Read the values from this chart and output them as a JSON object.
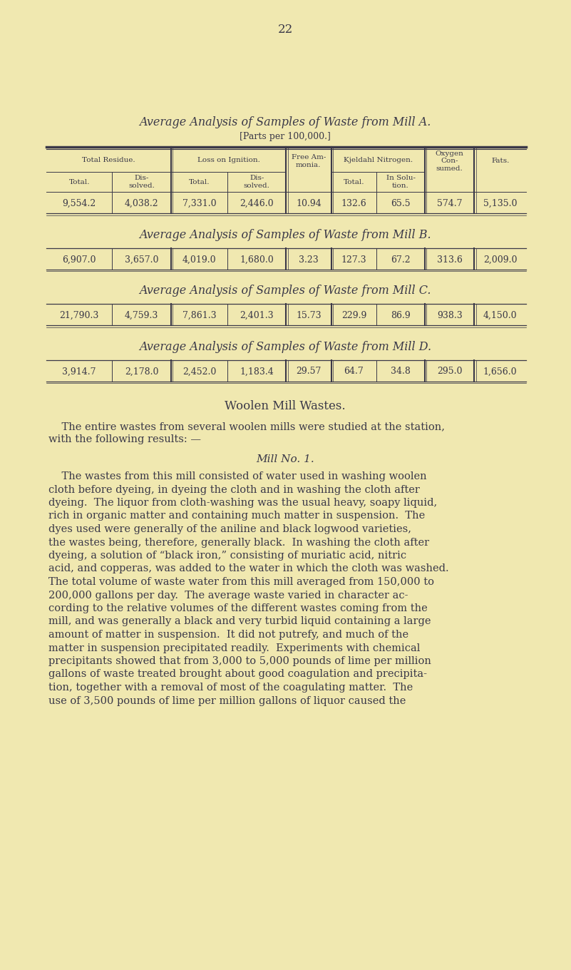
{
  "bg_color": "#f0e8b0",
  "text_color": "#3a3848",
  "page_number": "22",
  "table_title_A": "Average Analysis of Samples of Waste from Mill A.",
  "table_subtitle": "[Parts per 100,000.]",
  "table_title_B": "Average Analysis of Samples of Waste from Mill B.",
  "table_title_C": "Average Analysis of Samples of Waste from Mill C.",
  "table_title_D": "Average Analysis of Samples of Waste from Mill D.",
  "data_A": [
    "9,554.2",
    "4,038.2",
    "7,331.0",
    "2,446.0",
    "10.94",
    "132.6",
    "65.5",
    "574.7",
    "5,135.0"
  ],
  "data_B": [
    "6,907.0",
    "3,657.0",
    "4,019.0",
    "1,680.0",
    "3.23",
    "127.3",
    "67.2",
    "313.6",
    "2,009.0"
  ],
  "data_C": [
    "21,790.3",
    "4,759.3",
    "7,861.3",
    "2,401.3",
    "15.73",
    "229.9",
    "86.9",
    "938.3",
    "4,150.0"
  ],
  "data_D": [
    "3,914.7",
    "2,178.0",
    "2,452.0",
    "1,183.4",
    "29.57",
    "64.7",
    "34.8",
    "295.0",
    "1,656.0"
  ],
  "section_title": "Woolen Mill Wastes.",
  "mill_no_title": "Mill No. 1.",
  "para1_line1": "The entire wastes from several woolen mills were studied at the station,",
  "para1_line2": "with the following results: —",
  "body_lines": [
    "    The wastes from this mill consisted of water used in washing woolen",
    "cloth before dyeing, in dyeing the cloth and in washing the cloth after",
    "dyeing.  The liquor from cloth-washing was the usual heavy, soapy liquid,",
    "rich in organic matter and containing much matter in suspension.  The",
    "dyes used were generally of the aniline and black logwood varieties,",
    "the wastes being, therefore, generally black.  In washing the cloth after",
    "dyeing, a solution of “black iron,” consisting of muriatic acid, nitric",
    "acid, and copperas, was added to the water in which the cloth was washed.",
    "The total volume of waste water from this mill averaged from 150,000 to",
    "200,000 gallons per day.  The average waste varied in character ac-",
    "cording to the relative volumes of the different wastes coming from the",
    "mill, and was generally a black and very turbid liquid containing a large",
    "amount of matter in suspension.  It did not putrefy, and much of the",
    "matter in suspension precipitated readily.  Experiments with chemical",
    "precipitants showed that from 3,000 to 5,000 pounds of lime per million",
    "gallons of waste treated brought about good coagulation and precipita-",
    "tion, together with a removal of most of the coagulating matter.  The",
    "use of 3,500 pounds of lime per million gallons of liquor caused the"
  ]
}
